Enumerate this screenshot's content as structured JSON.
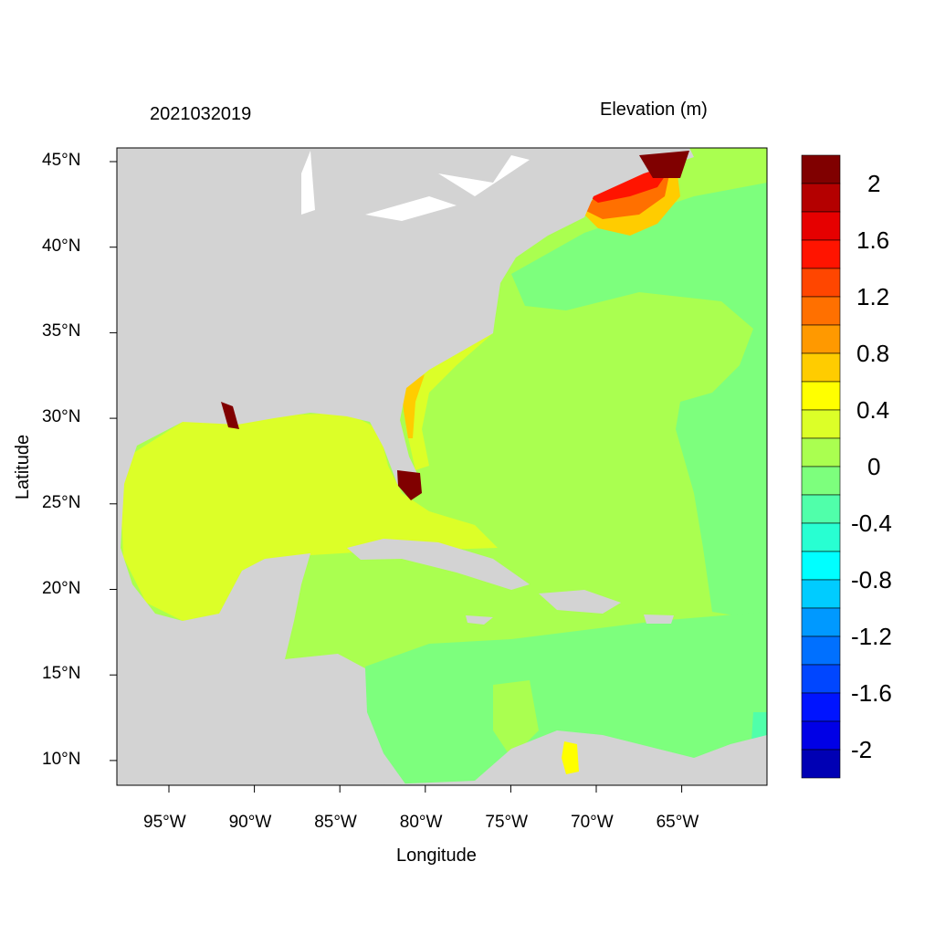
{
  "title_left": "2021032019",
  "title_right": "Elevation (m)",
  "xlabel": "Longitude",
  "ylabel": "Latitude",
  "x_ticks": [
    "95°W",
    "90°W",
    "85°W",
    "80°W",
    "75°W",
    "70°W",
    "65°W"
  ],
  "y_ticks": [
    "45°N",
    "40°N",
    "35°N",
    "30°N",
    "25°N",
    "20°N",
    "15°N",
    "10°N"
  ],
  "colorbar": {
    "labels": [
      "2",
      "1.6",
      "1.2",
      "0.8",
      "0.4",
      "0",
      "-0.4",
      "-0.8",
      "-1.2",
      "-1.6",
      "-2"
    ],
    "colors": [
      "#800000",
      "#B40000",
      "#E60000",
      "#FF1400",
      "#FF4600",
      "#FF7000",
      "#FF9900",
      "#FFCC00",
      "#FFFF00",
      "#DCFF28",
      "#AAFF50",
      "#7DFF7D",
      "#50FFAA",
      "#28FFD2",
      "#00FFFF",
      "#00CCFF",
      "#0099FF",
      "#0070FF",
      "#0046FF",
      "#0014FF",
      "#0000E6",
      "#0000B4"
    ]
  },
  "colors": {
    "land": "#D3D3D3",
    "gulf": "#DCFF28",
    "atlantic": "#AAFF50",
    "negative": "#7DFF7D"
  }
}
